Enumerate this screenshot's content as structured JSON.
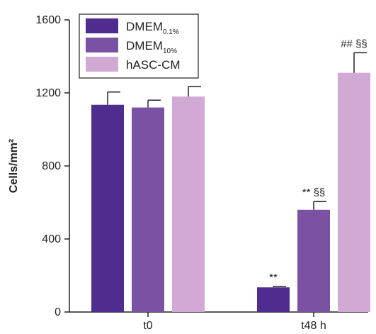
{
  "chart_data": {
    "type": "bar",
    "title": "",
    "xlabel": "",
    "ylabel": "Cells/mm²",
    "ylim": [
      0,
      1600
    ],
    "yticks": [
      "0",
      "400",
      "800",
      "1200",
      "1600"
    ],
    "categories": [
      "t0",
      "t48 h"
    ],
    "series": [
      {
        "name": "DMEM",
        "name_sub": "0.1%",
        "color": "#4f2d8f",
        "values": [
          1135,
          135
        ],
        "errors": [
          70,
          5
        ],
        "annotations": [
          "",
          "**"
        ]
      },
      {
        "name": "DMEM",
        "name_sub": "10%",
        "color": "#7b52a3",
        "values": [
          1120,
          560
        ],
        "errors": [
          40,
          45
        ],
        "annotations": [
          "",
          "** §§"
        ]
      },
      {
        "name": "hASC-CM",
        "name_sub": "",
        "color": "#d1a9d4",
        "values": [
          1180,
          1310
        ],
        "errors": [
          55,
          110
        ],
        "annotations": [
          "",
          "## §§"
        ]
      }
    ],
    "legend_position": "top-left",
    "grid": false
  }
}
